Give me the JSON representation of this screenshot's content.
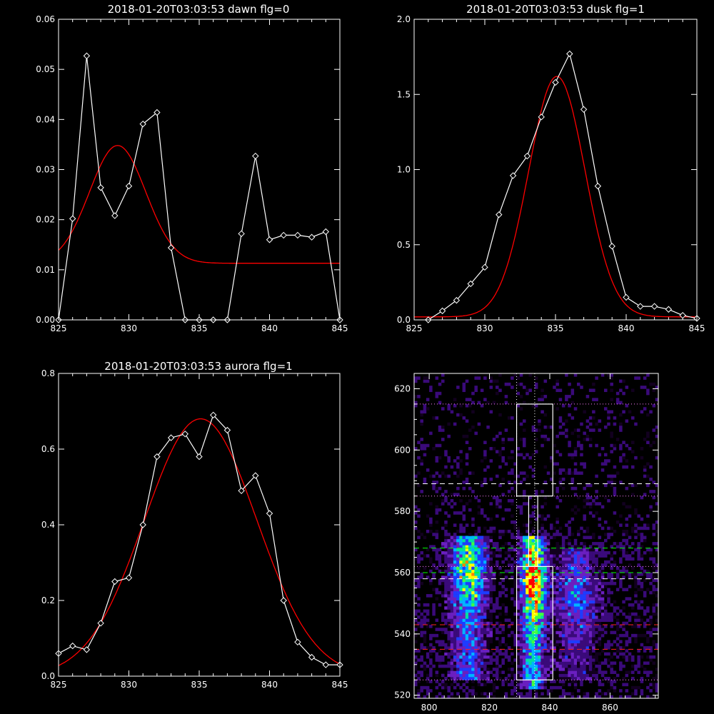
{
  "chart_data": [
    {
      "type": "line",
      "title": "2018-01-20T03:03:53 dawn flg=0",
      "xlim": [
        825,
        845
      ],
      "ylim": [
        0,
        0.06
      ],
      "xticks": [
        "825",
        "830",
        "835",
        "840",
        "845"
      ],
      "yticks": [
        "0.00",
        "0.01",
        "0.02",
        "0.03",
        "0.04",
        "0.05",
        "0.06"
      ],
      "data_color": "#ffffff",
      "fit_color": "#ff0000",
      "x": [
        825,
        826,
        827,
        828,
        829,
        830,
        831,
        832,
        833,
        834,
        835,
        836,
        837,
        838,
        839,
        840,
        841,
        842,
        843,
        844,
        845
      ],
      "data_values": [
        0.0,
        0.0202,
        0.0527,
        0.0264,
        0.0208,
        0.0267,
        0.0391,
        0.0414,
        0.0144,
        0.0,
        0.0,
        0.0,
        0.0,
        0.0172,
        0.0327,
        0.016,
        0.0169,
        0.0169,
        0.0165,
        0.0176,
        0.0
      ],
      "fit": {
        "amplitude": 0.0235,
        "center": 829.2,
        "sigma": 2.0,
        "baseline": 0.0113
      }
    },
    {
      "type": "line",
      "title": "2018-01-20T03:03:53 dusk flg=1",
      "xlim": [
        825,
        845
      ],
      "ylim": [
        0,
        2.0
      ],
      "xticks": [
        "825",
        "830",
        "835",
        "840",
        "845"
      ],
      "yticks": [
        "0.0",
        "0.5",
        "1.0",
        "1.5",
        "2.0"
      ],
      "data_color": "#ffffff",
      "fit_color": "#ff0000",
      "x": [
        826,
        827,
        828,
        829,
        830,
        831,
        832,
        833,
        834,
        835,
        836,
        837,
        838,
        839,
        840,
        841,
        842,
        843,
        844,
        845
      ],
      "data_values": [
        0.0,
        0.06,
        0.13,
        0.24,
        0.35,
        0.7,
        0.96,
        1.09,
        1.35,
        1.58,
        1.77,
        1.4,
        0.89,
        0.49,
        0.15,
        0.09,
        0.09,
        0.07,
        0.03,
        0.01
      ],
      "fit": {
        "amplitude": 1.6,
        "center": 835.1,
        "sigma": 2.0,
        "baseline": 0.02
      }
    },
    {
      "type": "line",
      "title": "2018-01-20T03:03:53 aurora flg=1",
      "xlim": [
        825,
        845
      ],
      "ylim": [
        0,
        0.8
      ],
      "xticks": [
        "825",
        "830",
        "835",
        "840",
        "845"
      ],
      "yticks": [
        "0.0",
        "0.2",
        "0.4",
        "0.6",
        "0.8"
      ],
      "data_color": "#ffffff",
      "fit_color": "#ff0000",
      "x": [
        825,
        826,
        827,
        828,
        829,
        830,
        831,
        832,
        833,
        834,
        835,
        836,
        837,
        838,
        839,
        840,
        841,
        842,
        843,
        844,
        845
      ],
      "data_values": [
        0.06,
        0.08,
        0.07,
        0.14,
        0.25,
        0.26,
        0.4,
        0.58,
        0.63,
        0.64,
        0.58,
        0.69,
        0.65,
        0.49,
        0.53,
        0.43,
        0.2,
        0.09,
        0.05,
        0.03,
        0.03
      ],
      "fit": {
        "amplitude": 0.68,
        "center": 835.1,
        "sigma": 4.0,
        "baseline": 0.0
      }
    },
    {
      "type": "heatmap",
      "xlim": [
        795,
        876
      ],
      "ylim": [
        519,
        625
      ],
      "xticks": [
        "800",
        "820",
        "840",
        "860"
      ],
      "yticks": [
        "520",
        "540",
        "560",
        "580",
        "600",
        "620"
      ],
      "colormap": [
        "#12001f",
        "#3a0a7a",
        "#6a1fc0",
        "#1e3cff",
        "#00b4ff",
        "#00e0a0",
        "#40ff40",
        "#ffff00",
        "#ff8000",
        "#ff0000"
      ],
      "bands": [
        {
          "center_x": 813,
          "sigma_x": 4,
          "y_range": [
            525,
            572
          ],
          "peak_y": 560,
          "intensity": 0.65
        },
        {
          "center_x": 834.5,
          "sigma_x": 2.6,
          "y_range": [
            522,
            572
          ],
          "peak_y": 558,
          "intensity": 1.0
        },
        {
          "center_x": 849,
          "sigma_x": 5,
          "y_range": [
            525,
            568
          ],
          "peak_y": 552,
          "intensity": 0.32
        }
      ],
      "boxes": [
        {
          "x0": 829,
          "x1": 841,
          "y0": 525,
          "y1": 562,
          "color": "#ffffff"
        },
        {
          "x0": 829,
          "x1": 841,
          "y0": 585,
          "y1": 615,
          "color": "#ffffff"
        },
        {
          "x0": 833,
          "x1": 836,
          "y0": 562,
          "y1": 585,
          "color": "#ffffff"
        }
      ],
      "dotted_vertical_x": [
        829,
        835
      ],
      "dotted_horizontal_y": [
        615,
        585,
        562,
        525
      ],
      "dotted_horizontal_color": "#ff80ff",
      "dashed_lines": [
        {
          "y": 589,
          "color": "#ffffff"
        },
        {
          "y": 568,
          "color": "#00ff00"
        },
        {
          "y": 560,
          "color": "#00ff00"
        },
        {
          "y": 558,
          "color": "#ffffff"
        },
        {
          "y": 543,
          "color": "#ff2020"
        },
        {
          "y": 535,
          "color": "#ff2020"
        }
      ]
    }
  ]
}
